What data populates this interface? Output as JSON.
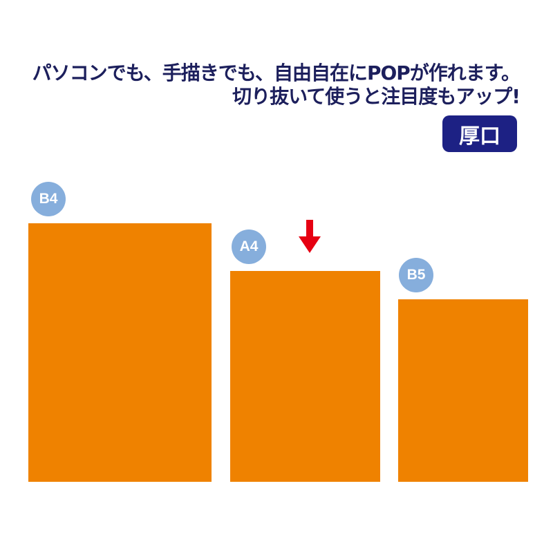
{
  "headline": {
    "line1": "パソコンでも、手描きでも、自由自在にPOPが作れます。",
    "line2": "切り抜いて使うと注目度もアップ!"
  },
  "badge": "厚口",
  "sizes": [
    {
      "label": "B4"
    },
    {
      "label": "A4",
      "marker": "arrow-down-icon"
    },
    {
      "label": "B5"
    }
  ],
  "colors": {
    "text": "#1c1f5c",
    "badge": "#1d2184",
    "sheet": "#ef8200",
    "size_circle": "#86aedc",
    "arrow": "#e60012"
  }
}
